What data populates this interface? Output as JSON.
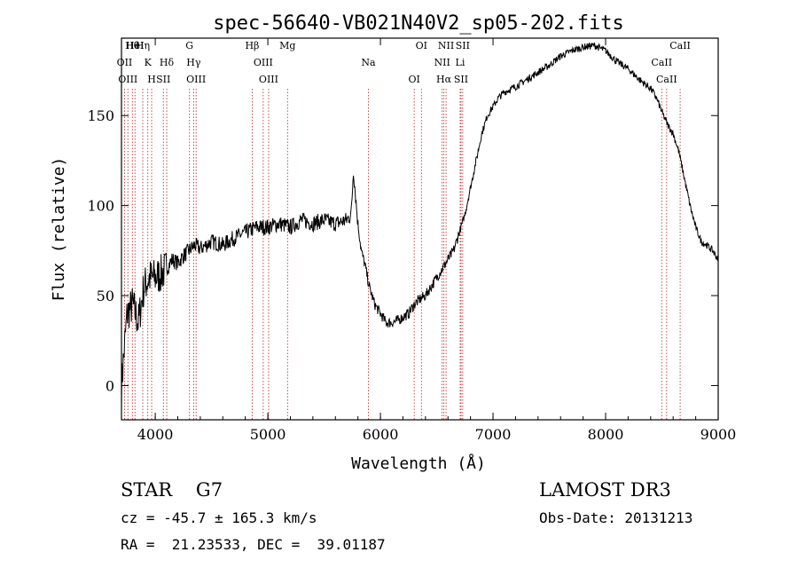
{
  "chart_data": {
    "type": "line",
    "title": "spec-56640-VB021N40V2_sp05-202.fits",
    "xlabel": "Wavelength (Å)",
    "ylabel": "Flux (relative)",
    "xlim": [
      3700,
      9000
    ],
    "ylim": [
      -19,
      193
    ],
    "xticks": [
      4000,
      5000,
      6000,
      7000,
      8000,
      9000
    ],
    "yticks": [
      0,
      50,
      100,
      150
    ],
    "series": [
      {
        "name": "flux",
        "x": [
          3700,
          3750,
          3800,
          3850,
          3900,
          3950,
          4000,
          4050,
          4100,
          4150,
          4200,
          4250,
          4300,
          4350,
          4400,
          4500,
          4600,
          4700,
          4800,
          4900,
          5000,
          5100,
          5200,
          5300,
          5400,
          5500,
          5600,
          5700,
          5740,
          5760,
          5780,
          5800,
          5830,
          5870,
          5900,
          5950,
          6000,
          6050,
          6100,
          6150,
          6200,
          6250,
          6300,
          6350,
          6400,
          6450,
          6500,
          6550,
          6600,
          6650,
          6700,
          6750,
          6800,
          6850,
          6900,
          6950,
          7000,
          7050,
          7100,
          7200,
          7300,
          7400,
          7500,
          7600,
          7700,
          7800,
          7900,
          8000,
          8100,
          8200,
          8300,
          8400,
          8450,
          8500,
          8550,
          8600,
          8650,
          8700,
          8750,
          8800,
          8850,
          8900,
          8950,
          9000
        ],
        "y": [
          0,
          40,
          45,
          35,
          55,
          60,
          60,
          62,
          65,
          70,
          68,
          72,
          75,
          78,
          76,
          80,
          78,
          82,
          85,
          88,
          88,
          90,
          88,
          92,
          90,
          92,
          90,
          92,
          95,
          120,
          105,
          90,
          75,
          65,
          55,
          45,
          40,
          35,
          35,
          36,
          38,
          40,
          45,
          48,
          50,
          55,
          60,
          65,
          70,
          75,
          85,
          95,
          110,
          125,
          140,
          150,
          155,
          160,
          163,
          166,
          170,
          174,
          178,
          183,
          186,
          188,
          189,
          186,
          180,
          176,
          170,
          165,
          160,
          152,
          145,
          140,
          130,
          115,
          100,
          88,
          80,
          78,
          75,
          70
        ]
      }
    ],
    "lines": [
      {
        "name": "Hθ",
        "x": 3797
      },
      {
        "name": "OII",
        "x": 3727
      },
      {
        "name": "OIII",
        "x": 3757
      },
      {
        "name": "HeI",
        "x": 3820
      },
      {
        "name": "K",
        "x": 3934
      },
      {
        "name": "H",
        "x": 3968
      },
      {
        "name": "Hη",
        "x": 3889
      },
      {
        "name": "Hδ",
        "x": 4102
      },
      {
        "name": "SII",
        "x": 4072
      },
      {
        "name": "G",
        "x": 4304
      },
      {
        "name": "Hγ",
        "x": 4341
      },
      {
        "name": "OIII",
        "x": 4363
      },
      {
        "name": "Hβ",
        "x": 4861
      },
      {
        "name": "OIII",
        "x": 4959
      },
      {
        "name": "OIII",
        "x": 5007
      },
      {
        "name": "Mg",
        "x": 5175
      },
      {
        "name": "Na",
        "x": 5893
      },
      {
        "name": "OI",
        "x": 6300
      },
      {
        "name": "OI",
        "x": 6364
      },
      {
        "name": "NII",
        "x": 6548
      },
      {
        "name": "Hα",
        "x": 6563
      },
      {
        "name": "NII",
        "x": 6583
      },
      {
        "name": "Li",
        "x": 6708
      },
      {
        "name": "SII",
        "x": 6716
      },
      {
        "name": "SII",
        "x": 6731
      },
      {
        "name": "CaII",
        "x": 8498
      },
      {
        "name": "CaII",
        "x": 8542
      },
      {
        "name": "CaII",
        "x": 8662
      }
    ],
    "legend": "none"
  },
  "info": {
    "object": "STAR    G7",
    "survey": "LAMOST DR3",
    "cz": "cz = -45.7 ± 165.3 km/s",
    "obs_date": "Obs-Date: 20131213",
    "coords": "RA =  21.23533, DEC =  39.01187"
  },
  "colors": {
    "spectrum": "#000000",
    "line_marker": "#b22222",
    "axis": "#000000"
  }
}
